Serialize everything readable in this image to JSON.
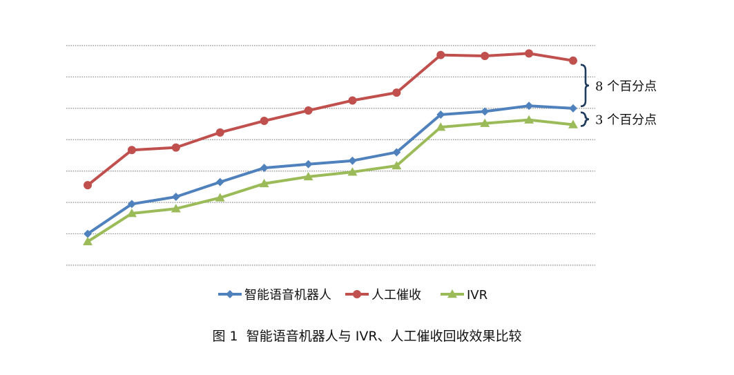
{
  "chart_data": {
    "type": "line",
    "title": "",
    "xlabel": "",
    "ylabel": "",
    "x": [
      1,
      2,
      3,
      4,
      5,
      6,
      7,
      8,
      9,
      10,
      11,
      12
    ],
    "ylim": [
      0,
      7
    ],
    "grid": true,
    "y_axis_ticks_shown": false,
    "x_axis_ticks_shown": false,
    "legend_position": "bottom",
    "series": [
      {
        "name": "智能语音机器人",
        "color": "#4f81bd",
        "marker": "diamond",
        "values": [
          1.0,
          1.95,
          2.18,
          2.65,
          3.1,
          3.22,
          3.33,
          3.6,
          4.8,
          4.9,
          5.08,
          5.0
        ]
      },
      {
        "name": "人工催收",
        "color": "#c0504d",
        "marker": "circle",
        "values": [
          2.55,
          3.67,
          3.75,
          4.23,
          4.6,
          4.93,
          5.25,
          5.5,
          6.7,
          6.67,
          6.75,
          6.52
        ]
      },
      {
        "name": "IVR",
        "color": "#9bbb59",
        "marker": "triangle",
        "values": [
          0.75,
          1.65,
          1.8,
          2.15,
          2.6,
          2.82,
          2.97,
          3.17,
          4.4,
          4.52,
          4.63,
          4.48
        ]
      }
    ],
    "annotations": [
      {
        "text": "8 个百分点",
        "between": [
          "人工催收",
          "智能语音机器人"
        ],
        "at_x": 11.2
      },
      {
        "text": "3 个百分点",
        "between": [
          "智能语音机器人",
          "IVR"
        ],
        "at_x": 11.2
      }
    ]
  },
  "caption": {
    "label": "图 1",
    "text": "智能语音机器人与 IVR、人工催收回收效果比较"
  }
}
